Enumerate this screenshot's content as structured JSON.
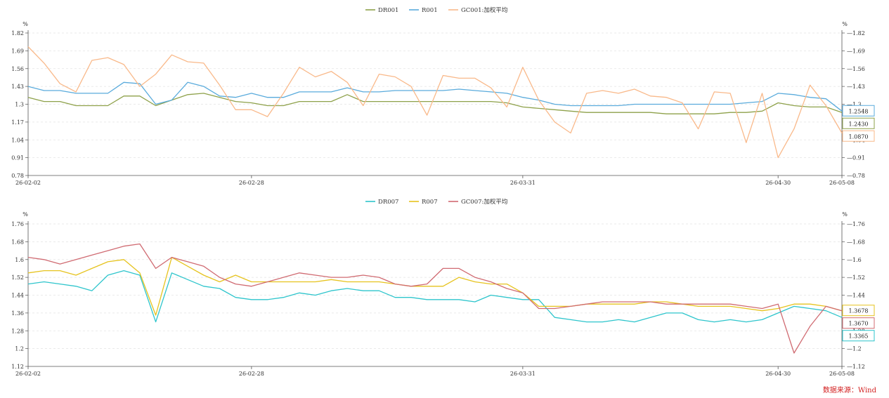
{
  "chart_data": [
    {
      "type": "line",
      "unit": "%",
      "ylim": [
        0.78,
        1.82
      ],
      "yticks": [
        "0.78",
        "0.91",
        "1.04",
        "1.17",
        "1.3",
        "1.43",
        "1.56",
        "1.69",
        "1.82"
      ],
      "x_tick_labels": [
        "26-02-02",
        "26-02-28",
        "26-03-31",
        "26-04-30",
        "26-05-08"
      ],
      "grid": "horizontal-dashed",
      "legend": "top-center",
      "series": [
        {
          "name": "DR001",
          "color": "#8ea14a",
          "values": [
            1.35,
            1.32,
            1.32,
            1.29,
            1.29,
            1.29,
            1.36,
            1.36,
            1.29,
            1.33,
            1.37,
            1.38,
            1.35,
            1.32,
            1.31,
            1.29,
            1.29,
            1.32,
            1.32,
            1.32,
            1.37,
            1.32,
            1.32,
            1.32,
            1.32,
            1.32,
            1.32,
            1.32,
            1.32,
            1.32,
            1.31,
            1.28,
            1.27,
            1.26,
            1.25,
            1.24,
            1.24,
            1.24,
            1.24,
            1.24,
            1.23,
            1.23,
            1.23,
            1.23,
            1.24,
            1.24,
            1.25,
            1.31,
            1.29,
            1.28,
            1.28,
            1.24
          ]
        },
        {
          "name": "R001",
          "color": "#5aabdc",
          "values": [
            1.43,
            1.4,
            1.4,
            1.38,
            1.38,
            1.38,
            1.46,
            1.45,
            1.3,
            1.33,
            1.46,
            1.43,
            1.36,
            1.35,
            1.38,
            1.35,
            1.35,
            1.39,
            1.39,
            1.39,
            1.42,
            1.39,
            1.39,
            1.4,
            1.4,
            1.4,
            1.4,
            1.41,
            1.4,
            1.39,
            1.38,
            1.35,
            1.33,
            1.3,
            1.29,
            1.29,
            1.29,
            1.29,
            1.3,
            1.3,
            1.3,
            1.3,
            1.3,
            1.3,
            1.3,
            1.31,
            1.32,
            1.38,
            1.37,
            1.35,
            1.34,
            1.25
          ]
        },
        {
          "name": "GC001:加权平均",
          "color": "#f9b98a",
          "values": [
            1.72,
            1.6,
            1.45,
            1.39,
            1.62,
            1.64,
            1.59,
            1.43,
            1.52,
            1.66,
            1.61,
            1.6,
            1.44,
            1.26,
            1.26,
            1.21,
            1.38,
            1.57,
            1.5,
            1.54,
            1.46,
            1.29,
            1.52,
            1.5,
            1.43,
            1.22,
            1.51,
            1.49,
            1.49,
            1.42,
            1.28,
            1.57,
            1.33,
            1.17,
            1.09,
            1.38,
            1.4,
            1.38,
            1.41,
            1.36,
            1.35,
            1.31,
            1.12,
            1.39,
            1.38,
            1.02,
            1.38,
            0.91,
            1.12,
            1.44,
            1.29,
            1.09
          ]
        }
      ],
      "end_labels": [
        "1.2548",
        "1.2430",
        "1.0870"
      ]
    },
    {
      "type": "line",
      "unit": "%",
      "ylim": [
        1.12,
        1.76
      ],
      "yticks": [
        "1.12",
        "1.2",
        "1.28",
        "1.36",
        "1.44",
        "1.52",
        "1.6",
        "1.68",
        "1.76"
      ],
      "x_tick_labels": [
        "26-02-02",
        "26-02-28",
        "26-03-31",
        "26-04-30",
        "26-05-08"
      ],
      "grid": "horizontal-dashed",
      "legend": "top-center",
      "series": [
        {
          "name": "DR007",
          "color": "#2ec5cc",
          "values": [
            1.49,
            1.5,
            1.49,
            1.48,
            1.46,
            1.53,
            1.55,
            1.53,
            1.32,
            1.54,
            1.51,
            1.48,
            1.47,
            1.43,
            1.42,
            1.42,
            1.43,
            1.45,
            1.44,
            1.46,
            1.47,
            1.46,
            1.46,
            1.43,
            1.43,
            1.42,
            1.42,
            1.42,
            1.41,
            1.44,
            1.43,
            1.42,
            1.42,
            1.34,
            1.33,
            1.32,
            1.32,
            1.33,
            1.32,
            1.34,
            1.36,
            1.36,
            1.33,
            1.32,
            1.33,
            1.32,
            1.33,
            1.36,
            1.39,
            1.38,
            1.37,
            1.34
          ]
        },
        {
          "name": "R007",
          "color": "#e6c31e",
          "values": [
            1.54,
            1.55,
            1.55,
            1.53,
            1.56,
            1.59,
            1.6,
            1.54,
            1.35,
            1.61,
            1.57,
            1.53,
            1.5,
            1.53,
            1.5,
            1.5,
            1.5,
            1.5,
            1.5,
            1.51,
            1.5,
            1.5,
            1.5,
            1.49,
            1.48,
            1.48,
            1.48,
            1.52,
            1.5,
            1.49,
            1.49,
            1.45,
            1.39,
            1.39,
            1.39,
            1.4,
            1.4,
            1.4,
            1.4,
            1.41,
            1.41,
            1.4,
            1.39,
            1.39,
            1.39,
            1.38,
            1.37,
            1.38,
            1.4,
            1.4,
            1.39,
            1.37
          ]
        },
        {
          "name": "GC007:加权平均",
          "color": "#d06b72",
          "values": [
            1.61,
            1.6,
            1.58,
            1.6,
            1.62,
            1.64,
            1.66,
            1.67,
            1.56,
            1.61,
            1.59,
            1.57,
            1.52,
            1.49,
            1.48,
            1.5,
            1.52,
            1.54,
            1.53,
            1.52,
            1.52,
            1.53,
            1.52,
            1.49,
            1.48,
            1.49,
            1.56,
            1.56,
            1.52,
            1.5,
            1.47,
            1.45,
            1.38,
            1.38,
            1.39,
            1.4,
            1.41,
            1.41,
            1.41,
            1.41,
            1.4,
            1.4,
            1.4,
            1.4,
            1.4,
            1.39,
            1.38,
            1.4,
            1.18,
            1.3,
            1.39,
            1.37
          ]
        }
      ],
      "end_labels": [
        "1.3678",
        "1.3670",
        "1.3365"
      ]
    }
  ],
  "source_text": "数据来源：Wind"
}
